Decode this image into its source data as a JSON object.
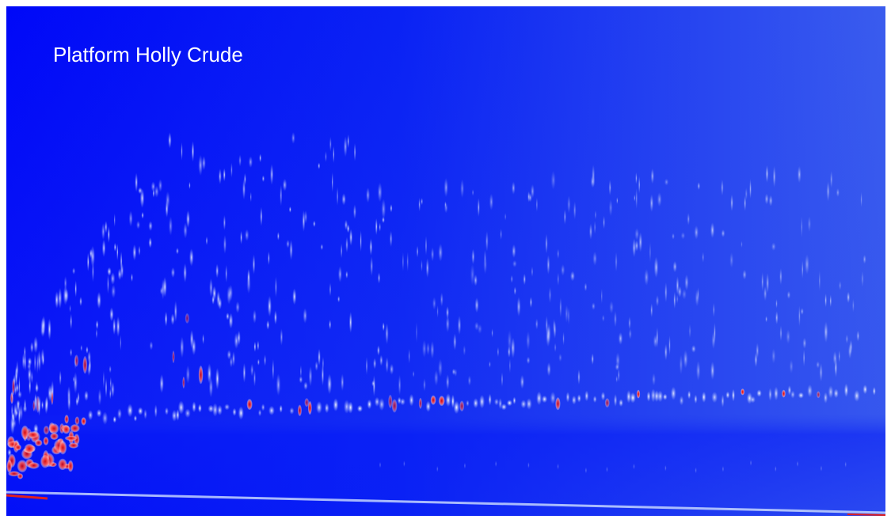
{
  "title": "Platform Holly Crude"
}
